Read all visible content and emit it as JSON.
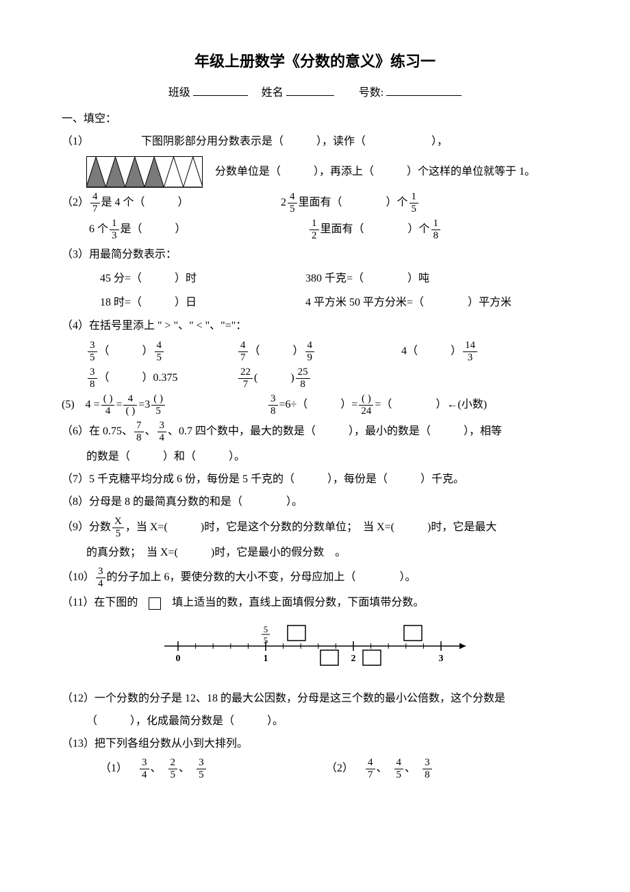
{
  "title": "年级上册数学《分数的意义》练习一",
  "header": {
    "class_label": "班级",
    "name_label": "姓名",
    "num_label": "号数:"
  },
  "sec1": "一、填空：",
  "q1": {
    "prefix": "（1）",
    "a": "下图阴影部分用分数表示是（　　　），读作（　　　　　　），",
    "b": "分数单位是（　　　），再添上（　　　）个这样的单位就等于 1。",
    "triangles": {
      "count": 6,
      "shaded": [
        true,
        true,
        true,
        true,
        false,
        false
      ],
      "fill": "#7a7a7a",
      "stroke": "#000"
    }
  },
  "q2": {
    "prefix": "（2）",
    "a1_num": "4",
    "a1_den": "7",
    "a1_txt": "是 4 个（　　　）",
    "a2_pre": "2",
    "a2_num": "4",
    "a2_den": "5",
    "a2_mid": " 里面有（　　　　）个",
    "a2_num2": "1",
    "a2_den2": "5",
    "b1_pre": "6 个",
    "b1_num": "1",
    "b1_den": "3",
    "b1_txt": "  是（　　　）",
    "b2_num": "1",
    "b2_den": "2",
    "b2_mid": " 里面有（　　　　）个",
    "b2_num2": "1",
    "b2_den2": "8"
  },
  "q3": {
    "prefix": "（3）用最简分数表示：",
    "a": "45 分=（　　　）时",
    "b": "380 千克=（　　　　）吨",
    "c": "18 时=（　　　）日",
    "d": "4 平方米 50 平方分米=（　　　　）平方米"
  },
  "q4": {
    "prefix": "（4）在括号里添上 \" > \"、\" < \"、\"=\"：",
    "pairs": [
      {
        "ln": "3",
        "ld": "5",
        "rn": "4",
        "rd": "5"
      },
      {
        "ln": "4",
        "ld": "7",
        "rn": "4",
        "rd": "9"
      },
      {
        "l": "4",
        "rn": "14",
        "rd": "3"
      },
      {
        "ln": "3",
        "ld": "8",
        "r": "0.375"
      },
      {
        "ln": "22",
        "ld": "7",
        "rn": "25",
        "rd": "8"
      }
    ]
  },
  "q5": {
    "prefix": "(5)　",
    "a": {
      "lead": "4 =",
      "n1": "( )",
      "d1": "4",
      "mid1": " = ",
      "n2": "4",
      "d2": "( )",
      "mid2": " =3",
      "n3": "( )",
      "d3": "5"
    },
    "b": {
      "n1": "3",
      "d1": "8",
      "mid1": "=6÷（　　　）=",
      "n2": "( )",
      "d2": "24",
      "tail": "=（　　　　）←(小数)"
    }
  },
  "q6": {
    "prefix": "（6）在 0.75、",
    "f1n": "7",
    "f1d": "8",
    "sep1": "、",
    "f2n": "3",
    "f2d": "4",
    "tail1": " 、0.7 四个数中，最大的数是（　　　），最小的数是（　　　），相等",
    "line2": "的数是（　　　）和（　　　）。"
  },
  "q7": "（7）5 千克糖平均分成 6 份，每份是 5 千克的（　　　），每份是（　　　）千克。",
  "q8": "（8）分母是 8 的最简真分数的和是（　　　　）。",
  "q9": {
    "prefix": "（9）分数",
    "fn": "X",
    "fd": "5",
    "a": "，当 X=(　　　)时，它是这个分数的分数单位；　当 X=(　　　)时，它是最大",
    "b": "的真分数；　当 X=(　　　)时，它是最小的假分数　。"
  },
  "q10": {
    "prefix": "（10）",
    "fn": "3",
    "fd": "4",
    "txt": "的分子加上 6，要使分数的大小不变，分母应加上（　　　　）。"
  },
  "q11": {
    "txt": "（11）在下图的　",
    "txt2": "　填上适当的数，直线上面填假分数，下面填带分数。",
    "label_num": "5",
    "label_den": "5",
    "ticks": [
      "0",
      "1",
      "2",
      "3"
    ]
  },
  "q12": {
    "a": "（12）一个分数的分子是 12、18 的最大公因数，分母是这三个数的最小公倍数，这个分数是",
    "b": "（　　　），化成最简分数是（　　　）。"
  },
  "q13": {
    "head": "（13）把下列各组分数从小到大排列。",
    "g1": {
      "label": "（1）",
      "f": [
        [
          "3",
          "4"
        ],
        [
          "2",
          "5"
        ],
        [
          "3",
          "5"
        ]
      ]
    },
    "g2": {
      "label": "（2）",
      "f": [
        [
          "4",
          "7"
        ],
        [
          "4",
          "5"
        ],
        [
          "3",
          "8"
        ]
      ]
    }
  }
}
